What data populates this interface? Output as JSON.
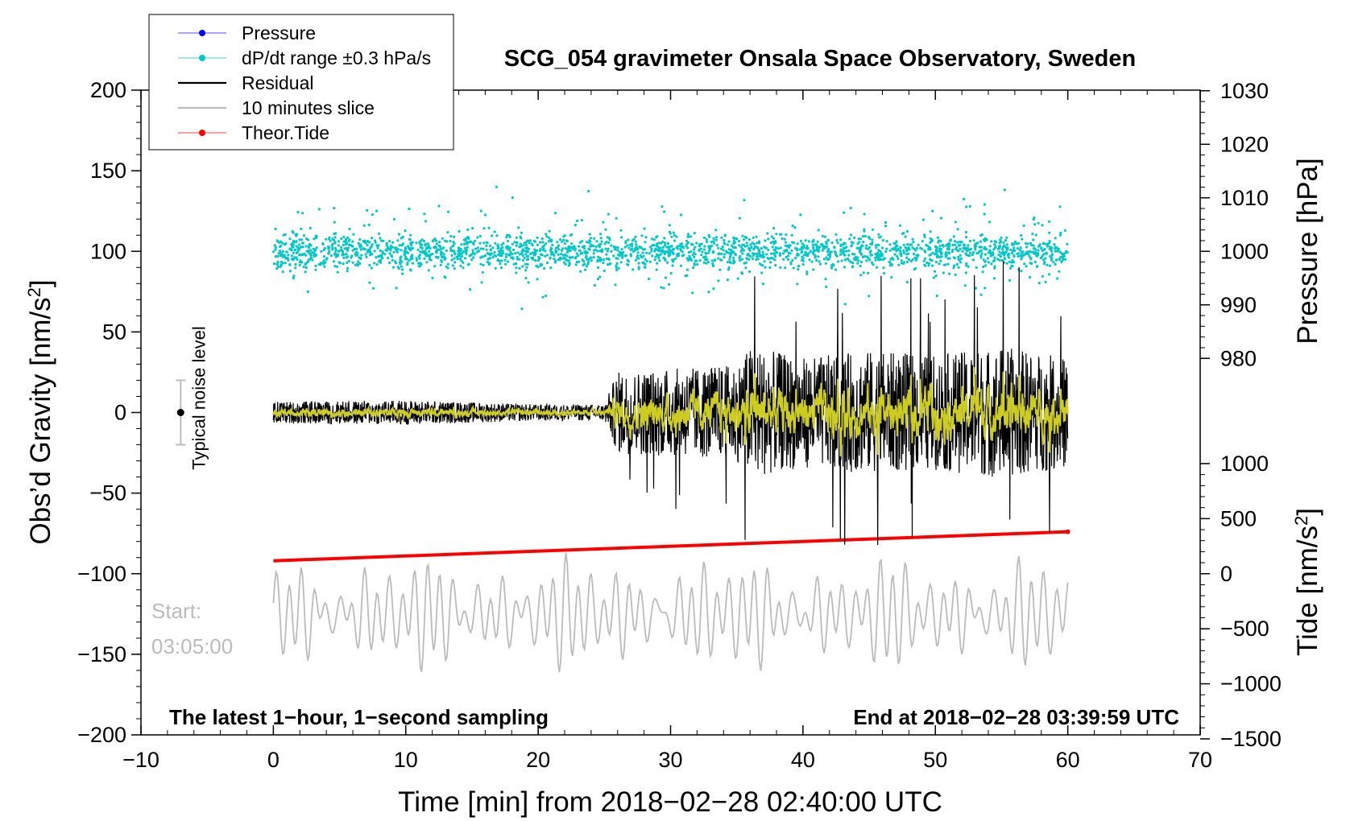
{
  "chart_data": {
    "type": "line",
    "title": "SCG_054 gravimeter Onsala Space Observatory, Sweden",
    "xlabel": "Time [min] from 2018−02−28 02:40:00 UTC",
    "ylabel_left": "Obs’d Gravity [nm/s²]",
    "ylabel_pressure": "Pressure [hPa]",
    "ylabel_tide": "Tide [nm/s²]",
    "xlim": [
      -10,
      70
    ],
    "ylim_left": [
      -200,
      200
    ],
    "pressure_axis_range": [
      980,
      1030
    ],
    "tide_axis_range": [
      -1500,
      1000
    ],
    "x_ticks": [
      -10,
      0,
      10,
      20,
      30,
      40,
      50,
      60,
      70
    ],
    "x_tick_labels": [
      "−10",
      "0",
      "10",
      "20",
      "30",
      "40",
      "50",
      "60",
      "70"
    ],
    "y_ticks_left": [
      -200,
      -150,
      -100,
      -50,
      0,
      50,
      100,
      150,
      200
    ],
    "y_tick_labels_left": [
      "−200",
      "−150",
      "−100",
      "−50",
      "0",
      "50",
      "100",
      "150",
      "200"
    ],
    "pressure_ticks": [
      980,
      990,
      1000,
      1010,
      1020,
      1030
    ],
    "pressure_tick_labels": [
      "980",
      "990",
      "1000",
      "1010",
      "1020",
      "1030"
    ],
    "tide_ticks": [
      -1500,
      -1000,
      -500,
      0,
      500,
      1000
    ],
    "tide_tick_labels": [
      "−1500",
      "−1000",
      "−500",
      "0",
      "500",
      "1000"
    ],
    "legend_position": "top-left",
    "series": [
      {
        "name": "Pressure",
        "color": "#0000ff",
        "marker": "dot",
        "values_description_only": false,
        "x": [],
        "y": []
      },
      {
        "name": "dP/dt range ±0.3 hPa/s",
        "color": "#00c8c8",
        "marker": "dot",
        "x_range": [
          0,
          60
        ],
        "center": 100,
        "spread": 20
      },
      {
        "name": "Residual",
        "color": "#000000",
        "x_range": [
          0,
          60
        ],
        "center": 0,
        "envelope_x": [
          0,
          10,
          20,
          25,
          26,
          30,
          35,
          36,
          40,
          45,
          50,
          55,
          60
        ],
        "envelope_amp": [
          8,
          9,
          6,
          6,
          30,
          32,
          35,
          48,
          40,
          45,
          42,
          48,
          40
        ]
      },
      {
        "name": "10 minutes slice",
        "color": "#bbbbbb",
        "x_range": [
          0,
          60
        ],
        "center": -125,
        "amplitude": 30
      },
      {
        "name": "Theor.Tide",
        "color": "#ff0000",
        "x": [
          0,
          60
        ],
        "y": [
          -92,
          -74
        ]
      }
    ],
    "smoothed_residual_color": "#cccc22",
    "noise_level_bar": {
      "x": -7,
      "center": 0,
      "range": [
        -20,
        20
      ],
      "label": "Typical noise level"
    },
    "annotations": {
      "start_label": "Start:",
      "start_time": "03:05:00",
      "bottom_left": "The latest 1−hour, 1−second sampling",
      "bottom_right": "End at 2018−02−28 03:39:59 UTC"
    }
  },
  "legend": [
    {
      "label": "Pressure",
      "color": "#0000ff",
      "line": "#8888ff",
      "dot": true
    },
    {
      "label": "dP/dt range ±0.3 hPa/s",
      "color": "#00c8c8",
      "line": "#80e0e0",
      "dot": true
    },
    {
      "label": "Residual",
      "color": "#000000",
      "line": "#000000",
      "dot": false
    },
    {
      "label": "10 minutes slice",
      "color": "#bbbbbb",
      "line": "#bbbbbb",
      "dot": false
    },
    {
      "label": "Theor.Tide",
      "color": "#ff0000",
      "line": "#ff8080",
      "dot": true
    }
  ]
}
